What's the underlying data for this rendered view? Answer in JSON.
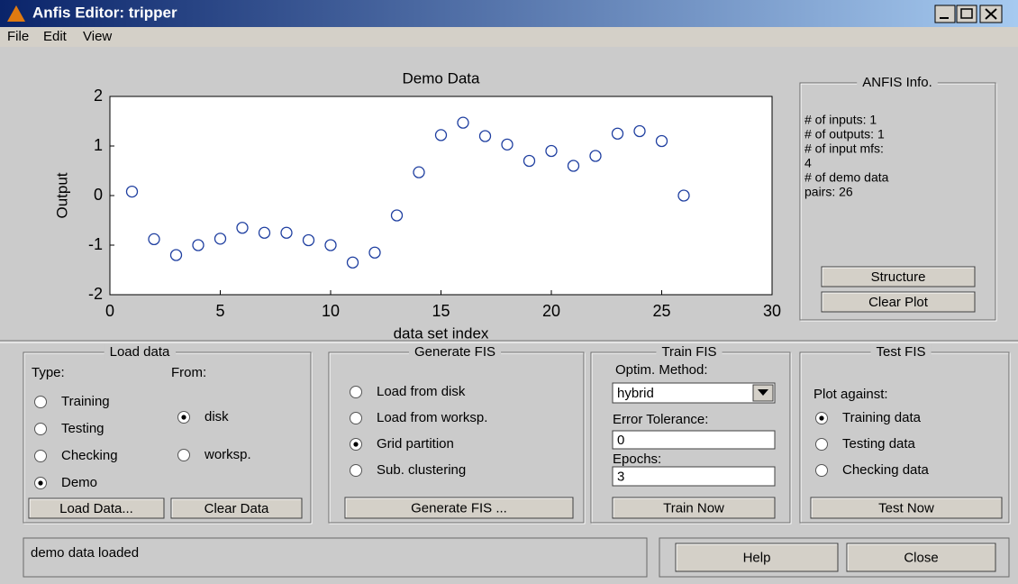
{
  "window": {
    "title": "Anfis Editor: tripper"
  },
  "menu": [
    "File",
    "Edit",
    "View"
  ],
  "chart_data": {
    "type": "scatter",
    "title": "Demo Data",
    "x_label": "data set index",
    "y_label": "Output",
    "x": [
      1,
      2,
      3,
      4,
      5,
      6,
      7,
      8,
      9,
      10,
      11,
      12,
      13,
      14,
      15,
      16,
      17,
      18,
      19,
      20,
      21,
      22,
      23,
      24,
      25,
      26
    ],
    "values": [
      0.08,
      -0.88,
      -1.2,
      -1.0,
      -0.87,
      -0.65,
      -0.75,
      -0.75,
      -0.9,
      -1.0,
      -1.35,
      -1.15,
      -0.4,
      0.47,
      1.22,
      1.47,
      1.2,
      1.03,
      0.7,
      0.9,
      0.6,
      0.8,
      1.25,
      1.3,
      1.1,
      0.0
    ],
    "color": "#1f3fa0",
    "xlim": [
      0,
      30
    ],
    "xticks": [
      0,
      5,
      10,
      15,
      20,
      25,
      30
    ],
    "ylim": [
      -2,
      2
    ],
    "yticks": [
      -2,
      -1,
      0,
      1,
      2
    ]
  },
  "anfis_info": {
    "title": "ANFIS Info.",
    "lines": [
      "# of inputs: 1",
      "# of outputs: 1",
      "# of input mfs:",
      "4",
      "# of demo data",
      "pairs: 26"
    ],
    "buttons": [
      "Structure",
      "Clear Plot"
    ]
  },
  "load_data": {
    "title": "Load data",
    "type_label": "Type:",
    "from_label": "From:",
    "type_options": [
      {
        "label": "Training",
        "selected": false
      },
      {
        "label": "Testing",
        "selected": false
      },
      {
        "label": "Checking",
        "selected": false
      },
      {
        "label": "Demo",
        "selected": true
      }
    ],
    "from_options": [
      {
        "label": "disk",
        "selected": true
      },
      {
        "label": "worksp.",
        "selected": false
      }
    ],
    "buttons": [
      "Load Data...",
      "Clear Data"
    ]
  },
  "generate_fis": {
    "title": "Generate FIS",
    "options": [
      {
        "label": "Load from disk",
        "selected": false
      },
      {
        "label": "Load from worksp.",
        "selected": false
      },
      {
        "label": "Grid partition",
        "selected": true
      },
      {
        "label": "Sub. clustering",
        "selected": false
      }
    ],
    "button": "Generate FIS ..."
  },
  "train_fis": {
    "title": "Train FIS",
    "method_label": "Optim. Method:",
    "method": "hybrid",
    "tolerance_label": "Error Tolerance:",
    "tolerance": 0,
    "epochs_label": "Epochs:",
    "epochs": 3,
    "button": "Train Now"
  },
  "test_fis": {
    "title": "Test FIS",
    "plot_against_label": "Plot against:",
    "options": [
      {
        "label": "Training data",
        "selected": true
      },
      {
        "label": "Testing data",
        "selected": false
      },
      {
        "label": "Checking data",
        "selected": false
      }
    ],
    "button": "Test Now"
  },
  "status": "demo data loaded",
  "buttons": [
    "Help",
    "Close"
  ]
}
